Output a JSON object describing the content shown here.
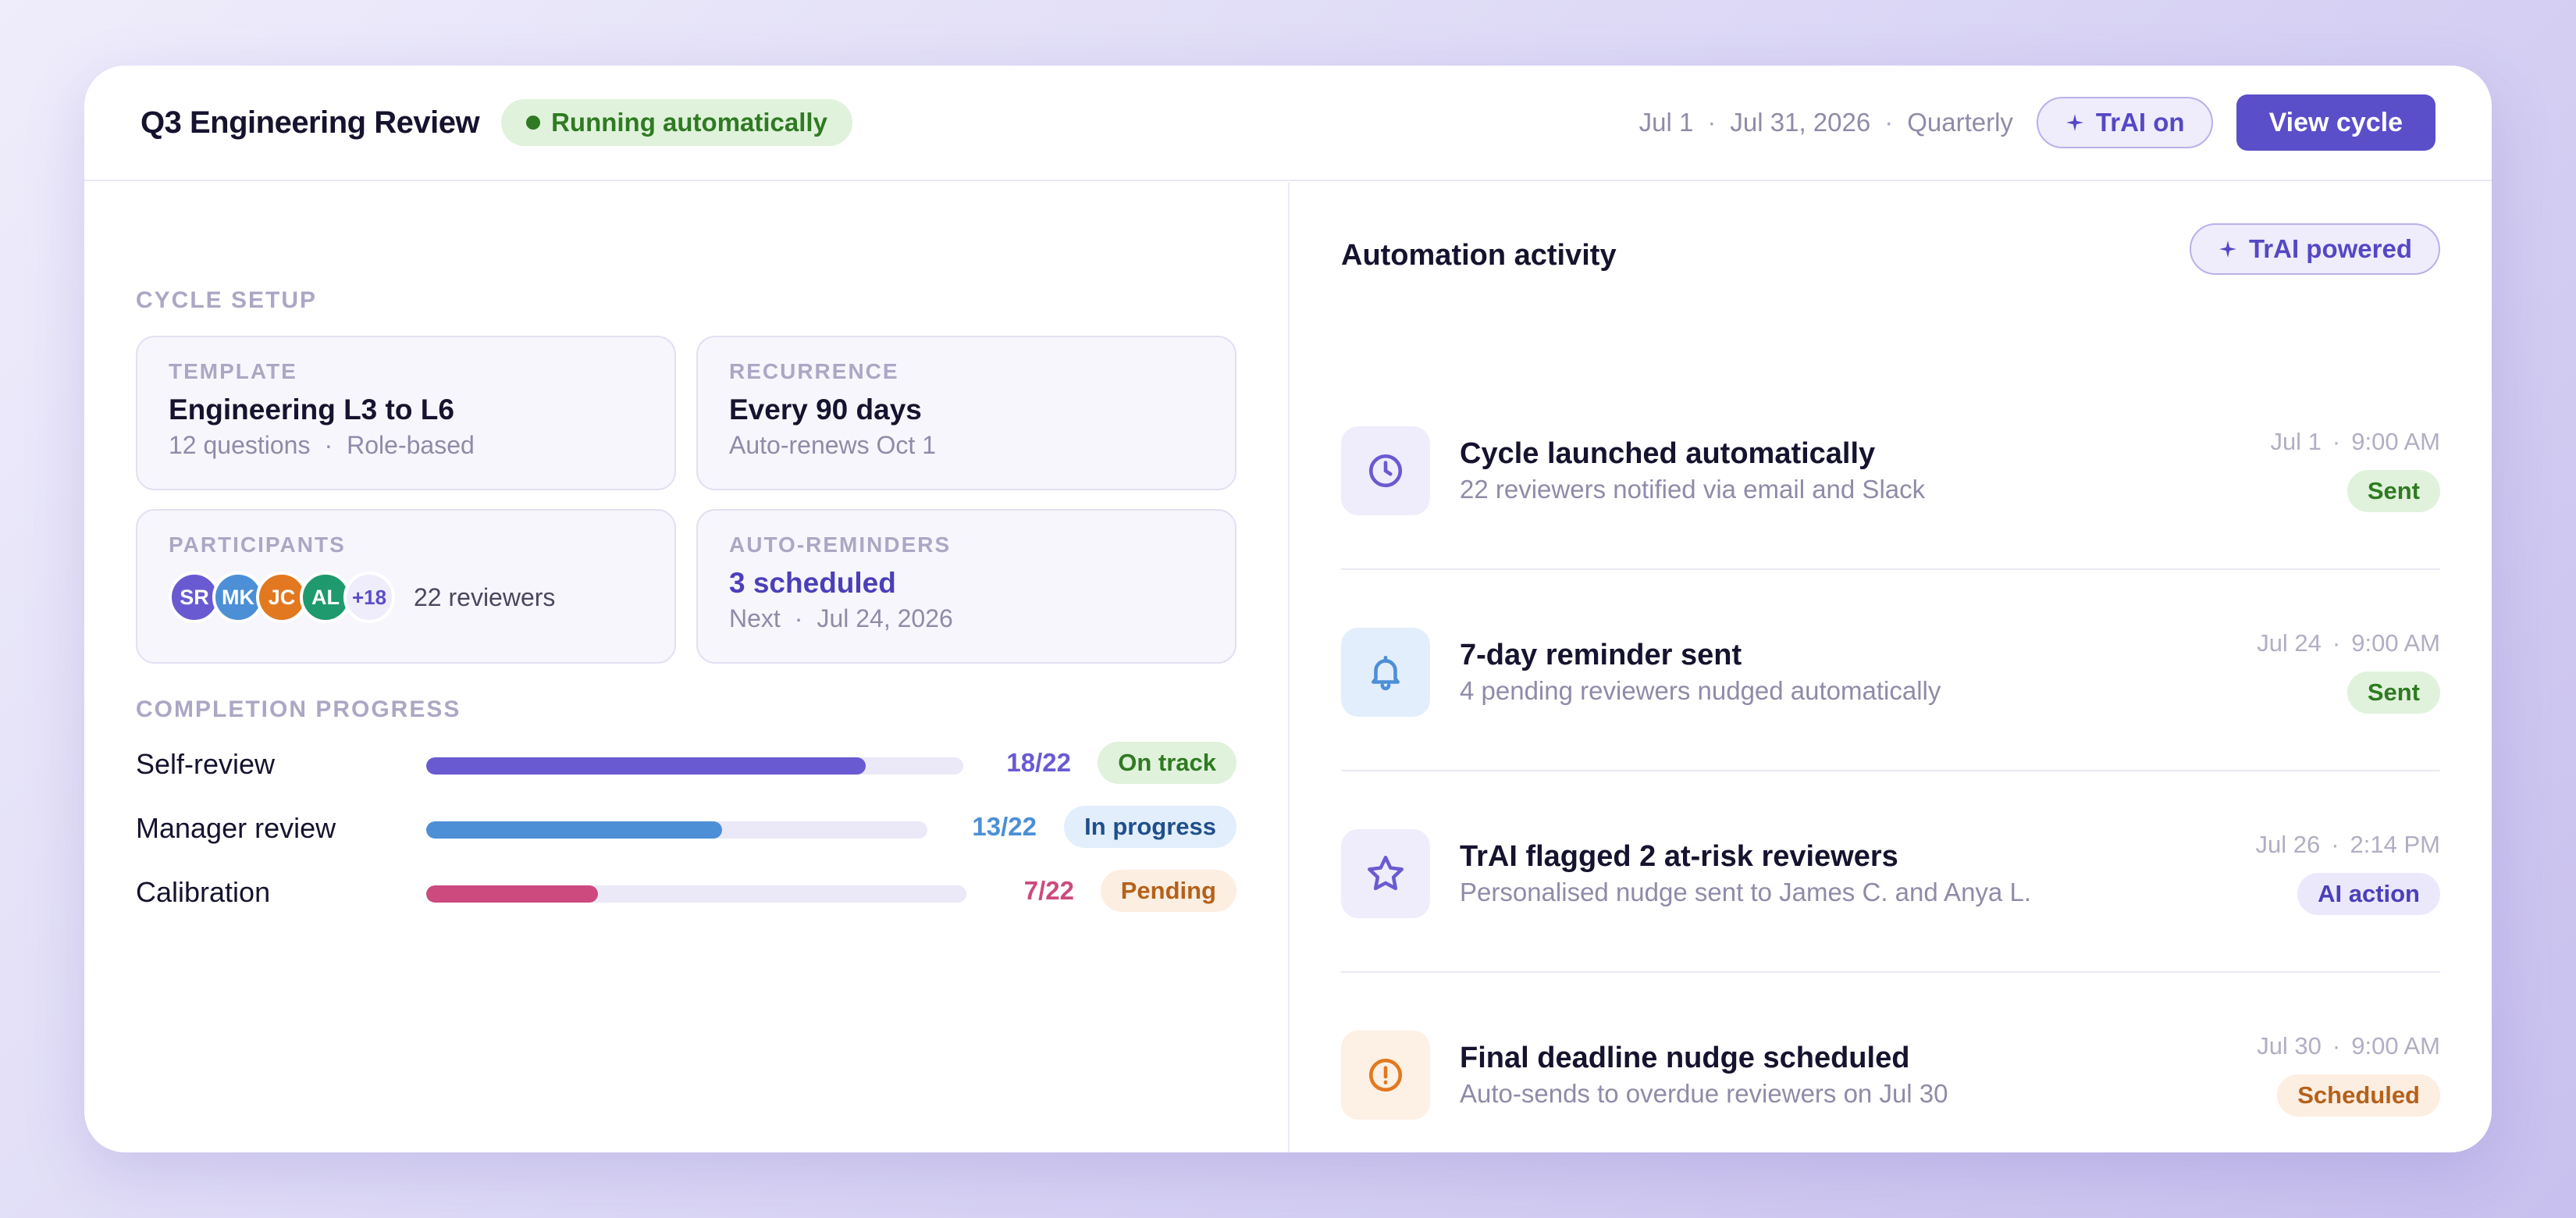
{
  "header": {
    "title": "Q3 Engineering Review",
    "status": "Running automatically",
    "date_start": "Jul 1",
    "date_end": "Jul 31, 2026",
    "frequency": "Quarterly",
    "trai_label": "TrAI on",
    "view_button": "View cycle",
    "separator": "·"
  },
  "setup": {
    "section_label": "CYCLE SETUP",
    "template": {
      "label": "TEMPLATE",
      "value": "Engineering L3 to L6",
      "sub_a": "12 questions",
      "sub_b": "Role-based"
    },
    "recurrence": {
      "label": "RECURRENCE",
      "value": "Every 90 days",
      "sub": "Auto-renews Oct 1"
    },
    "participants": {
      "label": "PARTICIPANTS",
      "avatars": [
        {
          "initials": "SR",
          "color": "#6a5ad1"
        },
        {
          "initials": "MK",
          "color": "#4c8fd6"
        },
        {
          "initials": "JC",
          "color": "#e2781f"
        },
        {
          "initials": "AL",
          "color": "#1f9a6e"
        }
      ],
      "more": "+18",
      "count": "22 reviewers"
    },
    "reminders": {
      "label": "AUTO-REMINDERS",
      "value": "3 scheduled",
      "sub_a": "Next",
      "sub_b": "Jul 24, 2026"
    }
  },
  "progress": {
    "section_label": "COMPLETION PROGRESS",
    "rows": [
      {
        "label": "Self-review",
        "fraction": 0.818,
        "count": "18/22",
        "badge": "On track",
        "bar_color": "#6a5ad1",
        "count_color": "#6a5ad1",
        "badge_bg": "#e0f2dc",
        "badge_fg": "#2f7a22"
      },
      {
        "label": "Manager review",
        "fraction": 0.591,
        "count": "13/22",
        "badge": "In progress",
        "bar_color": "#4c8fd6",
        "count_color": "#4c8fd6",
        "badge_bg": "#e2eefb",
        "badge_fg": "#1f4f8a"
      },
      {
        "label": "Calibration",
        "fraction": 0.318,
        "count": "7/22",
        "badge": "Pending",
        "bar_color": "#cc4a7d",
        "count_color": "#cc4a7d",
        "badge_bg": "#fdeee2",
        "badge_fg": "#b5611a"
      }
    ]
  },
  "activity": {
    "title": "Automation activity",
    "powered_label": "TrAI powered",
    "items": [
      {
        "icon": "clock-icon",
        "title": "Cycle launched automatically",
        "sub": "22 reviewers notified via email and Slack",
        "date": "Jul 1",
        "time": "9:00 AM",
        "badge": "Sent",
        "icon_bg": "#efecfc",
        "icon_color": "#6a5ad1",
        "badge_bg": "#e0f2dc",
        "badge_fg": "#2f7a22"
      },
      {
        "icon": "bell-icon",
        "title": "7-day reminder sent",
        "sub": "4 pending reviewers nudged automatically",
        "date": "Jul 24",
        "time": "9:00 AM",
        "badge": "Sent",
        "icon_bg": "#e2eefb",
        "icon_color": "#4c8fd6",
        "badge_bg": "#e0f2dc",
        "badge_fg": "#2f7a22"
      },
      {
        "icon": "star-icon",
        "title": "TrAI flagged 2 at-risk reviewers",
        "sub": "Personalised nudge sent to James C. and Anya L.",
        "date": "Jul 26",
        "time": "2:14 PM",
        "badge": "AI action",
        "icon_bg": "#efecfc",
        "icon_color": "#6a5ad1",
        "badge_bg": "#ebe8fb",
        "badge_fg": "#4b3fb9"
      },
      {
        "icon": "alert-circle-icon",
        "title": "Final deadline nudge scheduled",
        "sub": "Auto-sends to overdue reviewers on Jul 30",
        "date": "Jul 30",
        "time": "9:00 AM",
        "badge": "Scheduled",
        "icon_bg": "#fdf0e4",
        "icon_color": "#e2781f",
        "badge_bg": "#fdeee2",
        "badge_fg": "#b5611a"
      }
    ]
  }
}
